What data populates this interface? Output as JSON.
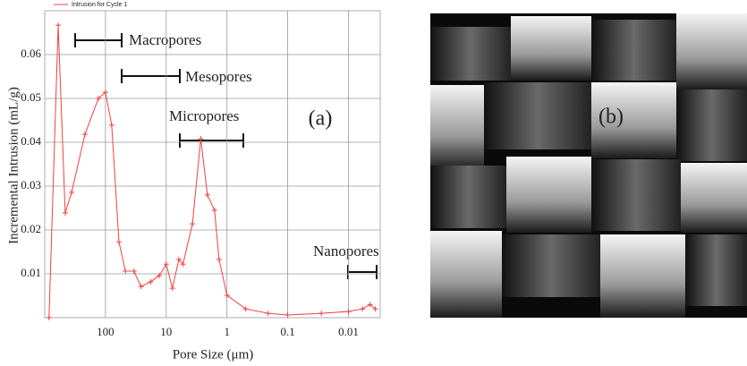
{
  "chart_data": {
    "type": "line",
    "legend": "Intrusion for Cycle 1",
    "xlabel": "Pore Size (μm)",
    "ylabel": "Incremental Intrusion (mL/g)",
    "panel_label": "(a)",
    "annotations": [
      "Macropores",
      "Mesopores",
      "Micropores",
      "Nanopores"
    ],
    "xscale": "log",
    "xlim": [
      1000,
      0.003
    ],
    "ylim": [
      0,
      0.07
    ],
    "xticks": [
      100,
      10,
      1,
      0.1,
      0.01
    ],
    "yticks": [
      0.01,
      0.02,
      0.03,
      0.04,
      0.05,
      0.06
    ],
    "grid": true,
    "series": [
      {
        "name": "Intrusion for Cycle 1",
        "color": "#f04040",
        "x": [
          850,
          600,
          460,
          360,
          218,
          131,
          100,
          79,
          60,
          47,
          34,
          26,
          18,
          13,
          10,
          7.9,
          6.2,
          5.3,
          3.7,
          2.7,
          2.1,
          1.6,
          1.35,
          1,
          0.49,
          0.21,
          0.1,
          0.028,
          0.01,
          0.0059,
          0.0044,
          0.0036
        ],
        "values": [
          0,
          0.0667,
          0.0239,
          0.0286,
          0.0418,
          0.05,
          0.0514,
          0.0439,
          0.0173,
          0.0106,
          0.0106,
          0.0071,
          0.0082,
          0.0096,
          0.0122,
          0.0067,
          0.0133,
          0.0122,
          0.0214,
          0.0408,
          0.028,
          0.0245,
          0.0133,
          0.0051,
          0.002,
          0.001,
          0.0006,
          0.001,
          0.0014,
          0.002,
          0.003,
          0.002
        ]
      }
    ]
  },
  "image": {
    "label": "(b)"
  }
}
